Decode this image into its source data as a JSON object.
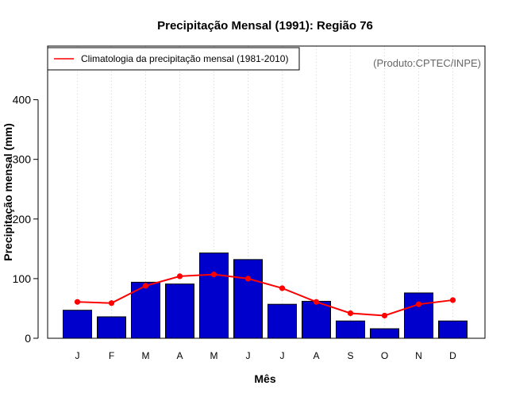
{
  "chart_data": {
    "type": "bar",
    "title": "Precipitação Mensal (1991): Região 76",
    "xlabel": "Mês",
    "ylabel": "Precipitação mensal (mm)",
    "ylim": [
      0,
      490
    ],
    "yticks": [
      0,
      100,
      200,
      300,
      400
    ],
    "categories": [
      "J",
      "F",
      "M",
      "A",
      "M",
      "J",
      "J",
      "A",
      "S",
      "O",
      "N",
      "D"
    ],
    "series": [
      {
        "name": "Precipitação mensal (1991)",
        "kind": "bar",
        "color": "#0000cd",
        "values": [
          47,
          36,
          94,
          91,
          143,
          132,
          57,
          62,
          29,
          16,
          76,
          29
        ]
      },
      {
        "name": "Climatologia da precipitação mensal (1981-2010)",
        "kind": "line",
        "color": "#ff0000",
        "values": [
          61,
          59,
          88,
          104,
          107,
          100,
          84,
          61,
          42,
          38,
          57,
          64
        ]
      }
    ],
    "legend": {
      "label": "Climatologia da precipitação mensal (1981-2010)",
      "position": "top-left"
    },
    "grid": "vertical-dotted",
    "annotation": "(Produto:CPTEC/INPE)"
  }
}
